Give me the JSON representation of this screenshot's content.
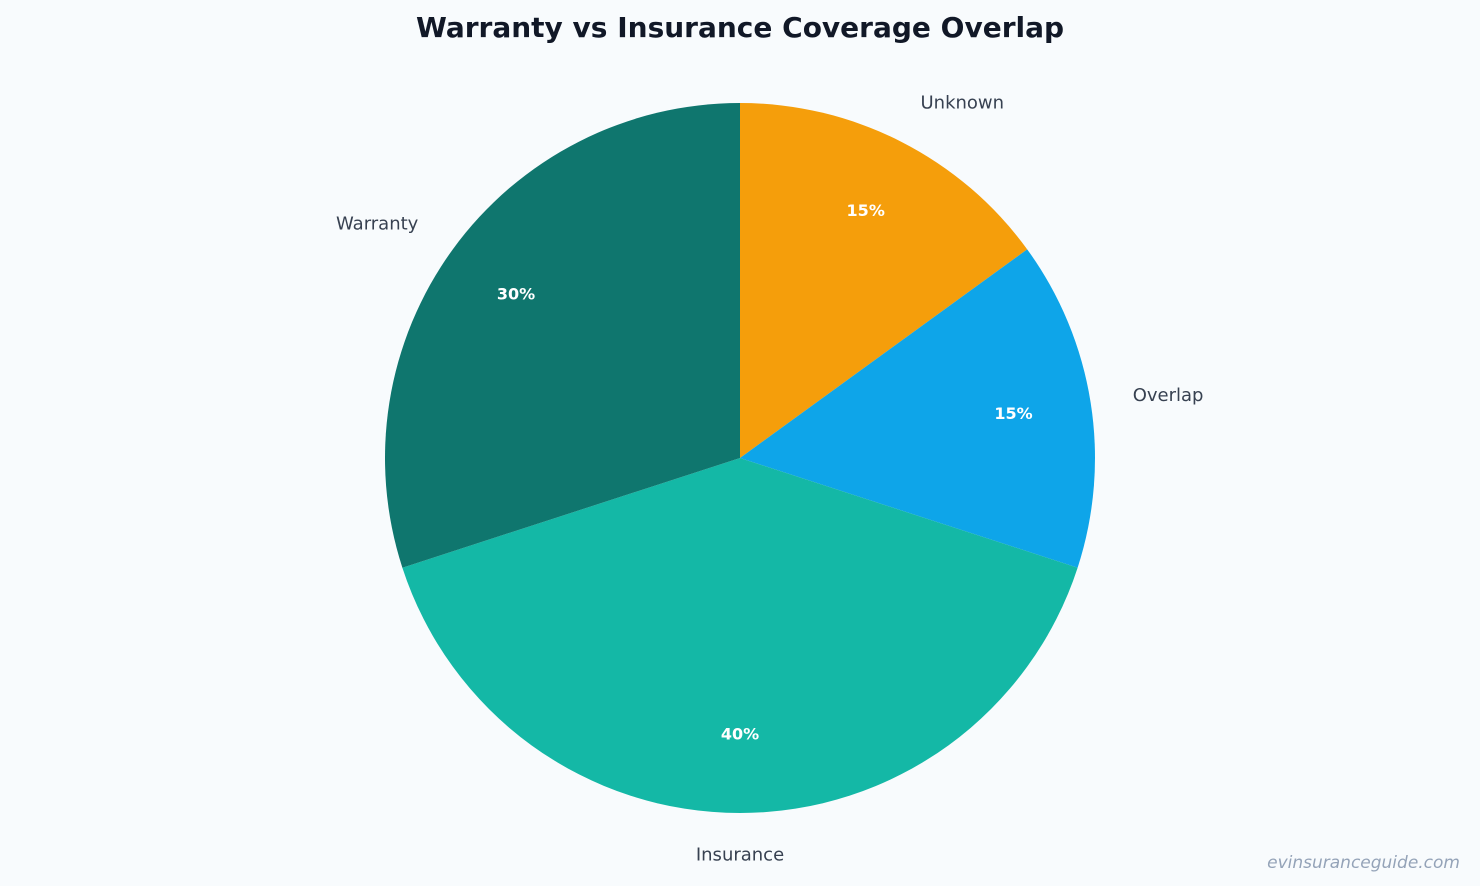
{
  "chart_data": {
    "type": "pie",
    "title": "Warranty vs Insurance Coverage Overlap",
    "categories": [
      "Unknown",
      "Overlap",
      "Insurance",
      "Warranty"
    ],
    "values": [
      15,
      15,
      40,
      30
    ],
    "value_labels": [
      "15%",
      "15%",
      "40%",
      "30%"
    ],
    "colors": [
      "#f59e0b",
      "#0ea5e9",
      "#14b8a6",
      "#0f766e"
    ],
    "start_angle": "top",
    "direction": "clockwise",
    "legend": "none"
  },
  "watermark": "evinsuranceguide.com"
}
